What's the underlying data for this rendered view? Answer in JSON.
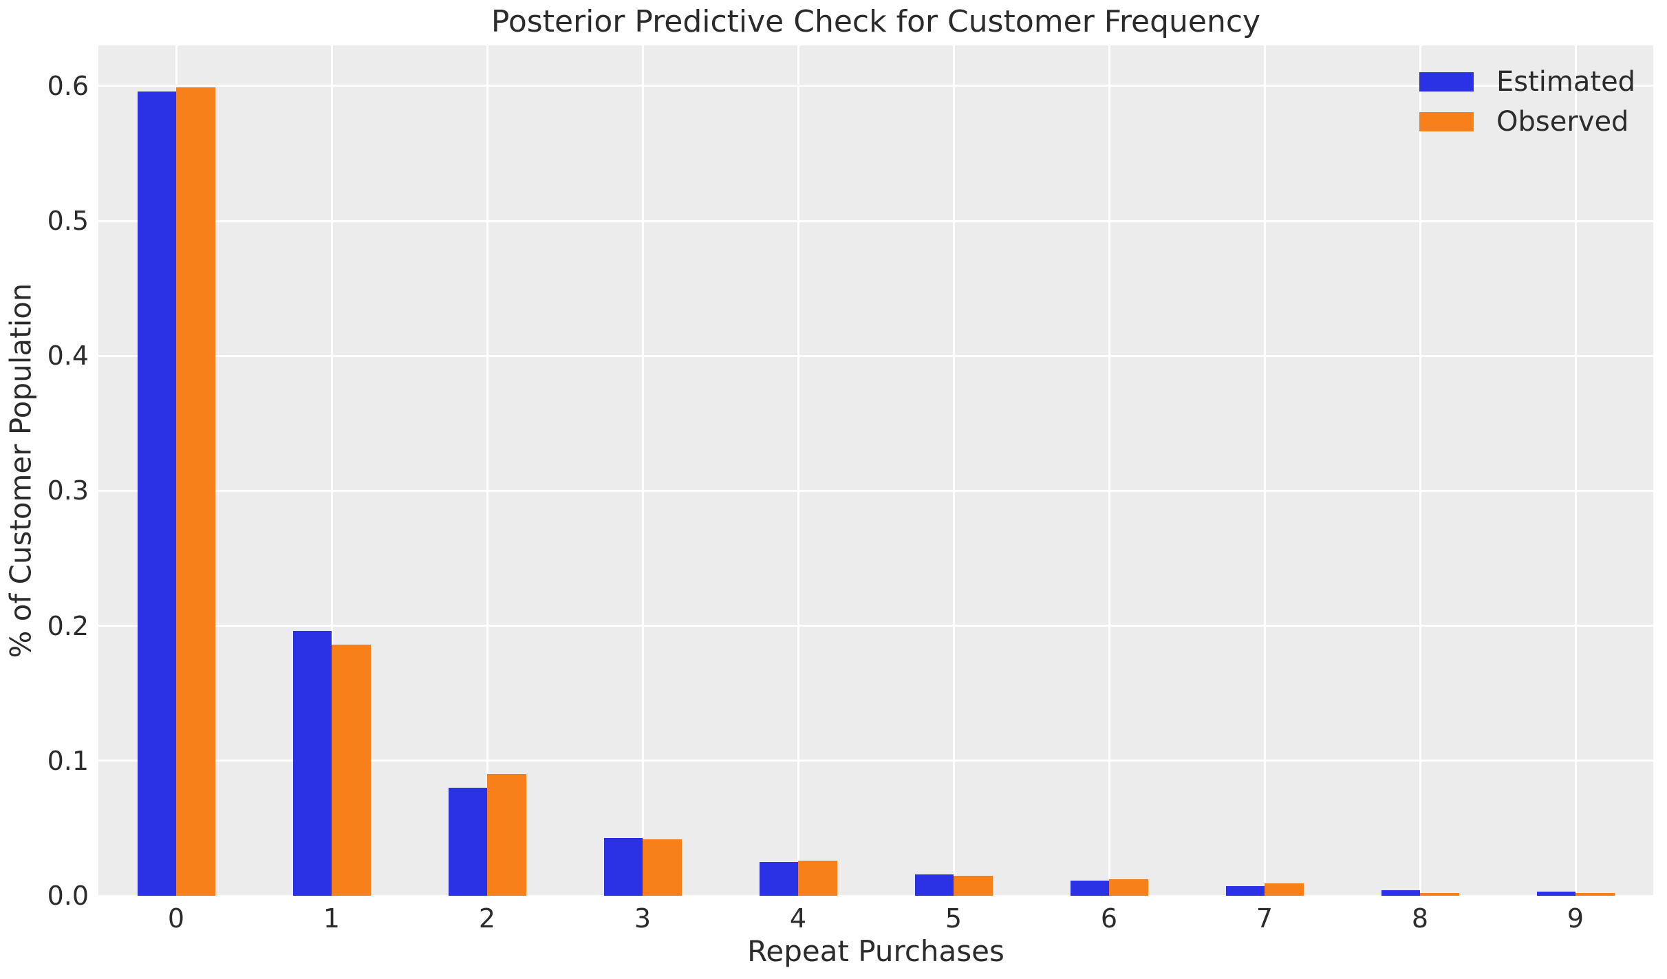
{
  "chart_data": {
    "type": "bar",
    "title": "Posterior Predictive Check for Customer Frequency",
    "xlabel": "Repeat Purchases",
    "ylabel": "% of Customer Population",
    "categories": [
      "0",
      "1",
      "2",
      "3",
      "4",
      "5",
      "6",
      "7",
      "8",
      "9"
    ],
    "series": [
      {
        "name": "Estimated",
        "color": "#2b31e5",
        "values": [
          0.596,
          0.196,
          0.08,
          0.043,
          0.025,
          0.016,
          0.011,
          0.007,
          0.004,
          0.003
        ]
      },
      {
        "name": "Observed",
        "color": "#f8801b",
        "values": [
          0.599,
          0.186,
          0.09,
          0.042,
          0.026,
          0.015,
          0.012,
          0.009,
          0.002,
          0.002
        ]
      }
    ],
    "ylim": [
      0,
      0.63
    ],
    "xlim": [
      -0.5,
      9.5
    ],
    "yticks": [
      0.0,
      0.1,
      0.2,
      0.3,
      0.4,
      0.5,
      0.6
    ],
    "ytick_labels": [
      "0.0",
      "0.1",
      "0.2",
      "0.3",
      "0.4",
      "0.5",
      "0.6"
    ],
    "bar_width_units": 0.25,
    "grid": true,
    "legend_position": "upper right",
    "styles": {
      "plot_background": "#ececec",
      "grid_color": "#ffffff",
      "figure_background": "#ffffff",
      "text_color": "#2b2b2b"
    }
  }
}
